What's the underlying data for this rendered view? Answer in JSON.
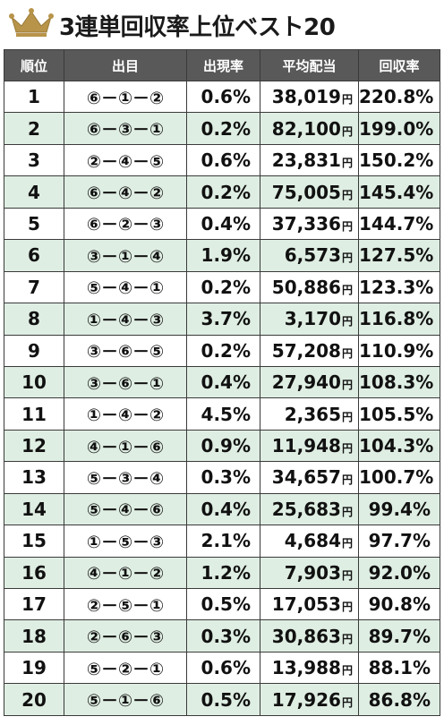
{
  "title": "3連単回収率上位ベスト20",
  "colors": {
    "header_bg": "#595959",
    "alt_row": "#dfeee3",
    "crown": "#b8944a"
  },
  "icon": "crown-icon",
  "table": {
    "headers": [
      "順位",
      "出目",
      "出現率",
      "平均配当",
      "回収率"
    ],
    "yen_suffix": "円",
    "rows": [
      {
        "rank": "1",
        "combo": "⑥－①－②",
        "rate": "0.6%",
        "payout": "38,019",
        "ret": "220.8%"
      },
      {
        "rank": "2",
        "combo": "⑥－③－①",
        "rate": "0.2%",
        "payout": "82,100",
        "ret": "199.0%"
      },
      {
        "rank": "3",
        "combo": "②－④－⑤",
        "rate": "0.6%",
        "payout": "23,831",
        "ret": "150.2%"
      },
      {
        "rank": "4",
        "combo": "⑥－④－②",
        "rate": "0.2%",
        "payout": "75,005",
        "ret": "145.4%"
      },
      {
        "rank": "5",
        "combo": "⑥－②－③",
        "rate": "0.4%",
        "payout": "37,336",
        "ret": "144.7%"
      },
      {
        "rank": "6",
        "combo": "③－①－④",
        "rate": "1.9%",
        "payout": "6,573",
        "ret": "127.5%"
      },
      {
        "rank": "7",
        "combo": "⑤－④－①",
        "rate": "0.2%",
        "payout": "50,886",
        "ret": "123.3%"
      },
      {
        "rank": "8",
        "combo": "①－④－③",
        "rate": "3.7%",
        "payout": "3,170",
        "ret": "116.8%"
      },
      {
        "rank": "9",
        "combo": "③－⑥－⑤",
        "rate": "0.2%",
        "payout": "57,208",
        "ret": "110.9%"
      },
      {
        "rank": "10",
        "combo": "③－⑥－①",
        "rate": "0.4%",
        "payout": "27,940",
        "ret": "108.3%"
      },
      {
        "rank": "11",
        "combo": "①－④－②",
        "rate": "4.5%",
        "payout": "2,365",
        "ret": "105.5%"
      },
      {
        "rank": "12",
        "combo": "④－①－⑥",
        "rate": "0.9%",
        "payout": "11,948",
        "ret": "104.3%"
      },
      {
        "rank": "13",
        "combo": "⑤－③－④",
        "rate": "0.3%",
        "payout": "34,657",
        "ret": "100.7%"
      },
      {
        "rank": "14",
        "combo": "⑤－④－⑥",
        "rate": "0.4%",
        "payout": "25,683",
        "ret": "99.4%"
      },
      {
        "rank": "15",
        "combo": "①－⑤－③",
        "rate": "2.1%",
        "payout": "4,684",
        "ret": "97.7%"
      },
      {
        "rank": "16",
        "combo": "④－①－②",
        "rate": "1.2%",
        "payout": "7,903",
        "ret": "92.0%"
      },
      {
        "rank": "17",
        "combo": "②－⑤－①",
        "rate": "0.5%",
        "payout": "17,053",
        "ret": "90.8%"
      },
      {
        "rank": "18",
        "combo": "②－⑥－③",
        "rate": "0.3%",
        "payout": "30,863",
        "ret": "89.7%"
      },
      {
        "rank": "19",
        "combo": "⑤－②－①",
        "rate": "0.6%",
        "payout": "13,988",
        "ret": "88.1%"
      },
      {
        "rank": "20",
        "combo": "⑤－①－⑥",
        "rate": "0.5%",
        "payout": "17,926",
        "ret": "86.8%"
      }
    ]
  }
}
